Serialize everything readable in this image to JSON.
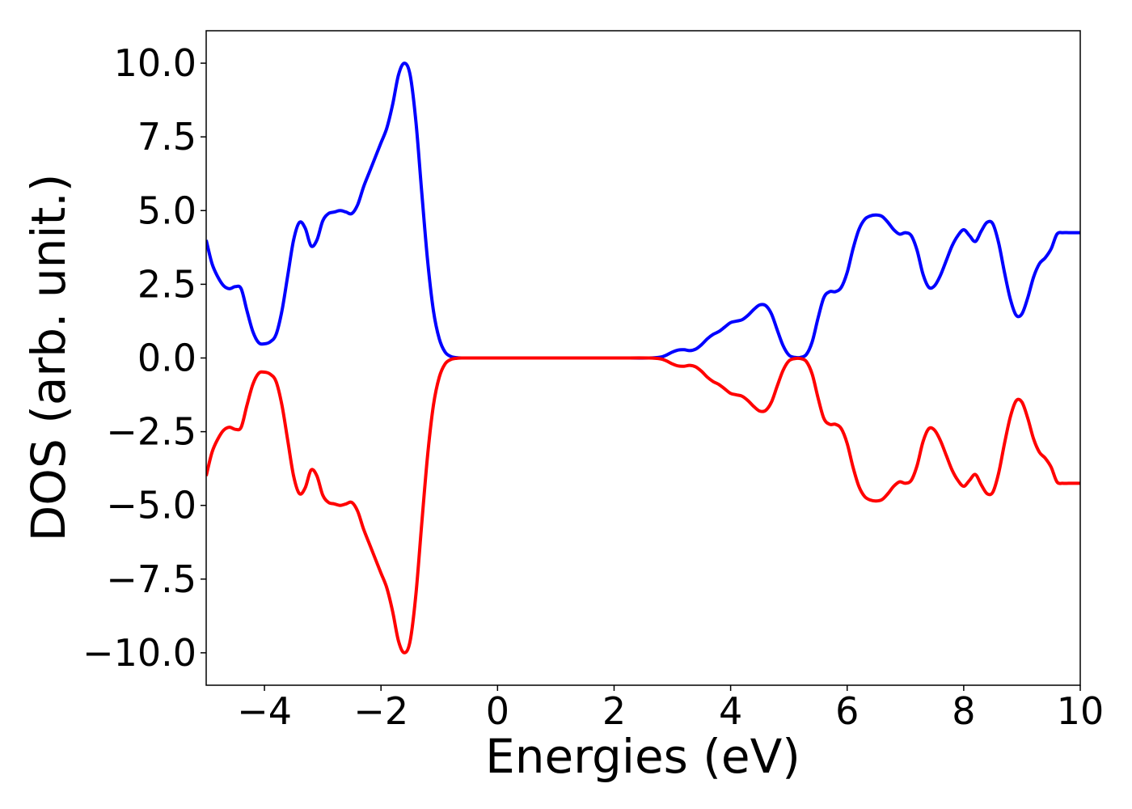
{
  "chart_data": {
    "type": "line",
    "title": "",
    "xlabel": "Energies (eV)",
    "ylabel": "DOS (arb. unit.)",
    "xlim": [
      -5,
      10
    ],
    "ylim": [
      -11.1,
      11.1
    ],
    "xticks": [
      -4,
      -2,
      0,
      2,
      4,
      6,
      8,
      10
    ],
    "xtick_labels": [
      "−4",
      "−2",
      "0",
      "2",
      "4",
      "6",
      "8",
      "10"
    ],
    "yticks": [
      10.0,
      7.5,
      5.0,
      2.5,
      0.0,
      -2.5,
      -5.0,
      -7.5,
      -10.0
    ],
    "ytick_labels": [
      "10.0",
      "7.5",
      "5.0",
      "2.5",
      "0.0",
      "−2.5",
      "−5.0",
      "−7.5",
      "−10.0"
    ],
    "grid": false,
    "legend": "none",
    "series": [
      {
        "color": "#0000ff",
        "x": [
          -5.0,
          -4.9,
          -4.8,
          -4.7,
          -4.6,
          -4.5,
          -4.4,
          -4.3,
          -4.2,
          -4.1,
          -4.0,
          -3.9,
          -3.8,
          -3.7,
          -3.6,
          -3.5,
          -3.4,
          -3.3,
          -3.2,
          -3.1,
          -3.0,
          -2.9,
          -2.8,
          -2.7,
          -2.6,
          -2.5,
          -2.4,
          -2.3,
          -2.2,
          -2.1,
          -2.0,
          -1.9,
          -1.8,
          -1.7,
          -1.6,
          -1.5,
          -1.4,
          -1.3,
          -1.2,
          -1.1,
          -1.0,
          -0.9,
          -0.8,
          -0.7,
          -0.6,
          -0.5,
          -0.3,
          0.0,
          1.0,
          2.0,
          2.6,
          2.8,
          2.9,
          3.0,
          3.1,
          3.2,
          3.3,
          3.4,
          3.5,
          3.6,
          3.7,
          3.8,
          3.9,
          4.0,
          4.1,
          4.2,
          4.3,
          4.4,
          4.5,
          4.6,
          4.7,
          4.8,
          4.9,
          5.0,
          5.1,
          5.2,
          5.3,
          5.4,
          5.5,
          5.6,
          5.7,
          5.8,
          5.9,
          6.0,
          6.1,
          6.2,
          6.3,
          6.4,
          6.5,
          6.6,
          6.7,
          6.8,
          6.9,
          7.0,
          7.1,
          7.2,
          7.3,
          7.4,
          7.5,
          7.6,
          7.7,
          7.8,
          7.9,
          8.0,
          8.1,
          8.2,
          8.3,
          8.4,
          8.5,
          8.6,
          8.7,
          8.8,
          8.9,
          9.0,
          9.1,
          9.2,
          9.3,
          9.4,
          9.5,
          9.6,
          9.7,
          9.8,
          9.9,
          10.0
        ],
        "y": [
          4.0,
          3.2,
          2.75,
          2.45,
          2.35,
          2.42,
          2.35,
          1.6,
          0.9,
          0.52,
          0.48,
          0.55,
          0.8,
          1.6,
          2.8,
          4.0,
          4.6,
          4.4,
          3.8,
          4.0,
          4.65,
          4.9,
          4.95,
          5.0,
          4.95,
          4.9,
          5.2,
          5.8,
          6.3,
          6.8,
          7.3,
          7.8,
          8.6,
          9.6,
          10.0,
          9.6,
          8.0,
          5.6,
          3.3,
          1.6,
          0.65,
          0.2,
          0.05,
          0.01,
          0.0,
          0.0,
          0.0,
          0.0,
          0.0,
          0.0,
          0.0,
          0.03,
          0.1,
          0.2,
          0.27,
          0.28,
          0.25,
          0.3,
          0.45,
          0.65,
          0.8,
          0.9,
          1.05,
          1.2,
          1.25,
          1.3,
          1.45,
          1.65,
          1.8,
          1.78,
          1.5,
          0.95,
          0.42,
          0.1,
          0.02,
          0.02,
          0.12,
          0.55,
          1.35,
          2.05,
          2.25,
          2.25,
          2.4,
          2.9,
          3.7,
          4.35,
          4.7,
          4.82,
          4.85,
          4.8,
          4.6,
          4.35,
          4.2,
          4.25,
          4.15,
          3.65,
          2.85,
          2.4,
          2.45,
          2.8,
          3.3,
          3.8,
          4.15,
          4.35,
          4.15,
          3.95,
          4.3,
          4.6,
          4.55,
          3.9,
          2.9,
          2.0,
          1.45,
          1.5,
          2.05,
          2.75,
          3.2,
          3.4,
          3.7,
          4.2,
          4.25,
          4.25,
          4.25,
          4.25
        ]
      },
      {
        "color": "#ff0000",
        "x": [
          -5.0,
          -4.9,
          -4.8,
          -4.7,
          -4.6,
          -4.5,
          -4.4,
          -4.3,
          -4.2,
          -4.1,
          -4.0,
          -3.9,
          -3.8,
          -3.7,
          -3.6,
          -3.5,
          -3.4,
          -3.3,
          -3.2,
          -3.1,
          -3.0,
          -2.9,
          -2.8,
          -2.7,
          -2.6,
          -2.5,
          -2.4,
          -2.3,
          -2.2,
          -2.1,
          -2.0,
          -1.9,
          -1.8,
          -1.7,
          -1.6,
          -1.5,
          -1.4,
          -1.3,
          -1.2,
          -1.1,
          -1.0,
          -0.9,
          -0.8,
          -0.7,
          -0.6,
          -0.5,
          -0.3,
          0.0,
          1.0,
          2.0,
          2.6,
          2.8,
          2.9,
          3.0,
          3.1,
          3.2,
          3.3,
          3.4,
          3.5,
          3.6,
          3.7,
          3.8,
          3.9,
          4.0,
          4.1,
          4.2,
          4.3,
          4.4,
          4.5,
          4.6,
          4.7,
          4.8,
          4.9,
          5.0,
          5.1,
          5.2,
          5.3,
          5.4,
          5.5,
          5.6,
          5.7,
          5.8,
          5.9,
          6.0,
          6.1,
          6.2,
          6.3,
          6.4,
          6.5,
          6.6,
          6.7,
          6.8,
          6.9,
          7.0,
          7.1,
          7.2,
          7.3,
          7.4,
          7.5,
          7.6,
          7.7,
          7.8,
          7.9,
          8.0,
          8.1,
          8.2,
          8.3,
          8.4,
          8.5,
          8.6,
          8.7,
          8.8,
          8.9,
          9.0,
          9.1,
          9.2,
          9.3,
          9.4,
          9.5,
          9.6,
          9.7,
          9.8,
          9.9,
          10.0
        ],
        "y": [
          -4.0,
          -3.2,
          -2.75,
          -2.45,
          -2.35,
          -2.42,
          -2.35,
          -1.6,
          -0.9,
          -0.52,
          -0.48,
          -0.55,
          -0.8,
          -1.6,
          -2.8,
          -4.0,
          -4.6,
          -4.4,
          -3.8,
          -4.0,
          -4.65,
          -4.9,
          -4.95,
          -5.0,
          -4.95,
          -4.9,
          -5.2,
          -5.8,
          -6.3,
          -6.8,
          -7.3,
          -7.8,
          -8.6,
          -9.6,
          -10.0,
          -9.6,
          -8.0,
          -5.6,
          -3.3,
          -1.6,
          -0.65,
          -0.2,
          -0.05,
          -0.01,
          0.0,
          0.0,
          0.0,
          0.0,
          0.0,
          0.0,
          0.0,
          -0.03,
          -0.1,
          -0.2,
          -0.27,
          -0.28,
          -0.25,
          -0.3,
          -0.45,
          -0.65,
          -0.8,
          -0.9,
          -1.05,
          -1.2,
          -1.25,
          -1.3,
          -1.45,
          -1.65,
          -1.8,
          -1.78,
          -1.5,
          -0.95,
          -0.42,
          -0.1,
          -0.02,
          -0.02,
          -0.12,
          -0.55,
          -1.35,
          -2.05,
          -2.25,
          -2.25,
          -2.4,
          -2.9,
          -3.7,
          -4.35,
          -4.7,
          -4.82,
          -4.85,
          -4.8,
          -4.6,
          -4.35,
          -4.2,
          -4.25,
          -4.15,
          -3.65,
          -2.85,
          -2.4,
          -2.45,
          -2.8,
          -3.3,
          -3.8,
          -4.15,
          -4.35,
          -4.15,
          -3.95,
          -4.3,
          -4.6,
          -4.55,
          -3.9,
          -2.9,
          -2.0,
          -1.45,
          -1.5,
          -2.05,
          -2.75,
          -3.2,
          -3.4,
          -3.7,
          -4.2,
          -4.25,
          -4.25,
          -4.25,
          -4.25
        ]
      }
    ]
  }
}
